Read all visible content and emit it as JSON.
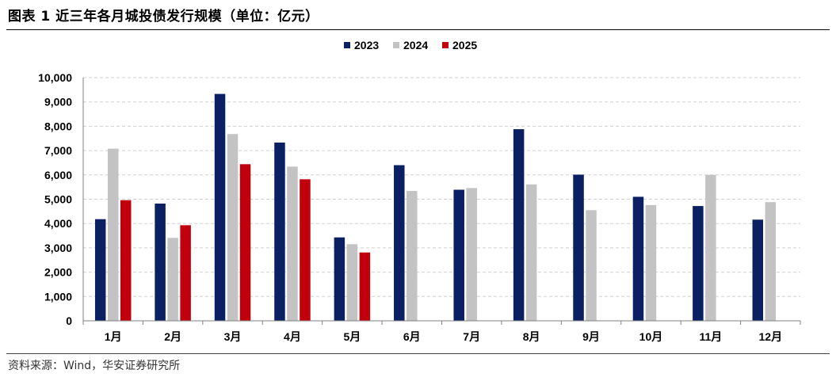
{
  "figure": {
    "title": "图表 1 近三年各月城投债发行规模（单位：亿元）",
    "source": "资料来源：Wind，华安证券研究所"
  },
  "colors": {
    "2023": "#0b1f63",
    "2024": "#c3c3c3",
    "2025": "#c0000c",
    "grid": "#d0d0d0",
    "axis": "#808080"
  },
  "chart_data": {
    "type": "bar",
    "title": "近三年各月城投债发行规模（单位：亿元）",
    "xlabel": "",
    "ylabel": "",
    "ylim": [
      0,
      10000
    ],
    "yticks": [
      "0",
      "1,000",
      "2,000",
      "3,000",
      "4,000",
      "5,000",
      "6,000",
      "7,000",
      "8,000",
      "9,000",
      "10,000"
    ],
    "grid": true,
    "legend_position": "top-center",
    "categories": [
      "1月",
      "2月",
      "3月",
      "4月",
      "5月",
      "6月",
      "7月",
      "8月",
      "9月",
      "10月",
      "11月",
      "12月"
    ],
    "series": [
      {
        "name": "2023",
        "values": [
          4180,
          4820,
          9330,
          7330,
          3430,
          6400,
          5390,
          7880,
          6010,
          5100,
          4720,
          4160
        ]
      },
      {
        "name": "2024",
        "values": [
          7080,
          3410,
          7680,
          6340,
          3150,
          5340,
          5460,
          5610,
          4550,
          4760,
          6000,
          4880
        ]
      },
      {
        "name": "2025",
        "values": [
          4960,
          3930,
          6440,
          5820,
          2810,
          null,
          null,
          null,
          null,
          null,
          null,
          null
        ]
      }
    ]
  }
}
